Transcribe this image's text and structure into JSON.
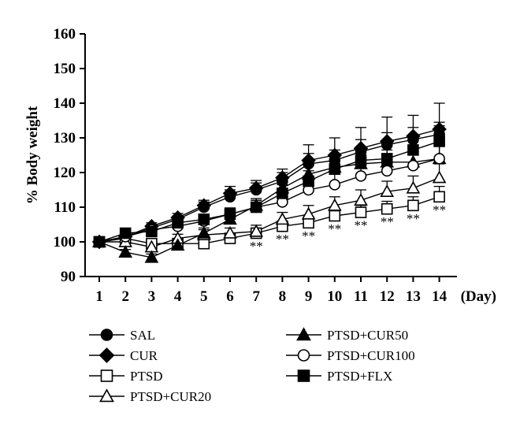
{
  "chart_data": {
    "type": "line",
    "title": "",
    "xlabel": "(Day)",
    "ylabel": "% Body weight",
    "x": [
      1,
      2,
      3,
      4,
      5,
      6,
      7,
      8,
      9,
      10,
      11,
      12,
      13,
      14
    ],
    "x_tick_labels": [
      "1",
      "2",
      "3",
      "4",
      "5",
      "6",
      "7",
      "8",
      "9",
      "10",
      "11",
      "12",
      "13",
      "14"
    ],
    "ylim": [
      90,
      160
    ],
    "y_ticks": [
      90,
      100,
      110,
      120,
      130,
      140,
      150,
      160
    ],
    "y_tick_labels": [
      "90",
      "100",
      "110",
      "120",
      "130",
      "140",
      "150",
      "160"
    ],
    "grid": false,
    "legend_position": "bottom",
    "series": [
      {
        "name": "SAL",
        "marker": "circle-filled",
        "values": [
          100,
          101.5,
          104,
          106.5,
          110,
          113,
          115,
          117.5,
          122.5,
          123.5,
          126,
          128,
          129.5,
          131
        ],
        "error": [
          0.5,
          0.8,
          1,
          1,
          1.5,
          2,
          2,
          2.5,
          3,
          3,
          3.5,
          3.5,
          3.5,
          3.5
        ]
      },
      {
        "name": "CUR",
        "marker": "diamond-filled",
        "values": [
          100,
          101.5,
          104.5,
          107,
          110.5,
          114,
          115.5,
          118.5,
          123.5,
          125,
          127,
          129,
          130.5,
          132.5
        ],
        "error": [
          0.5,
          0.8,
          1,
          1.2,
          1.5,
          2,
          2.2,
          2.5,
          4.5,
          5,
          6,
          7,
          6,
          7.5
        ]
      },
      {
        "name": "PTSD",
        "marker": "square-open",
        "values": [
          100,
          101,
          99.5,
          99.5,
          99.5,
          101,
          102.5,
          104.5,
          105.5,
          107.5,
          108.5,
          109.5,
          110.5,
          113
        ],
        "error": [
          0.5,
          0.8,
          1,
          1,
          1.2,
          1.2,
          1.5,
          1.5,
          1.8,
          2,
          2,
          2.2,
          2.5,
          3
        ]
      },
      {
        "name": "PTSD+CUR20",
        "marker": "triangle-open",
        "values": [
          100,
          100,
          98.5,
          101,
          102,
          102.5,
          103,
          106.5,
          108,
          110.5,
          112,
          114.5,
          115.5,
          118.5
        ],
        "error": [
          0.5,
          0.8,
          1,
          1.2,
          1.5,
          1.5,
          1.8,
          2,
          2.5,
          2.5,
          3,
          3,
          3.5,
          4
        ]
      },
      {
        "name": "PTSD+CUR50",
        "marker": "triangle-filled",
        "values": [
          100,
          97,
          95.5,
          99,
          102.5,
          106.5,
          110.5,
          115.5,
          119.5,
          121.5,
          122.5,
          123,
          123,
          124
        ],
        "error": [
          0.5,
          0.8,
          1,
          1.2,
          1.5,
          2,
          2,
          2.5,
          3,
          3,
          3.5,
          3.5,
          4,
          4
        ]
      },
      {
        "name": "PTSD+CUR100",
        "marker": "circle-open",
        "values": [
          100,
          101.5,
          103.5,
          104.5,
          106,
          108,
          110,
          111.5,
          115,
          116.5,
          119,
          120.5,
          122,
          124
        ],
        "error": [
          0.5,
          0.8,
          1,
          1.2,
          1.5,
          1.5,
          2,
          2.2,
          2.5,
          3,
          3,
          3.5,
          3.5,
          4
        ]
      },
      {
        "name": "PTSD+FLX",
        "marker": "square-filled",
        "values": [
          100,
          102.5,
          103,
          105.5,
          106.5,
          108,
          110,
          114,
          117.5,
          121,
          123.5,
          124,
          126.5,
          129
        ],
        "error": [
          0.5,
          0.8,
          1,
          1.2,
          1.5,
          1.8,
          2,
          2.5,
          3,
          3,
          3.5,
          3.5,
          4,
          4.5
        ]
      }
    ],
    "annotations": [
      {
        "x": 7,
        "text": "**"
      },
      {
        "x": 8,
        "text": "**"
      },
      {
        "x": 9,
        "text": "**"
      },
      {
        "x": 10,
        "text": "**"
      },
      {
        "x": 11,
        "text": "**"
      },
      {
        "x": 12,
        "text": "**"
      },
      {
        "x": 13,
        "text": "**"
      },
      {
        "x": 14,
        "text": "**"
      }
    ]
  }
}
